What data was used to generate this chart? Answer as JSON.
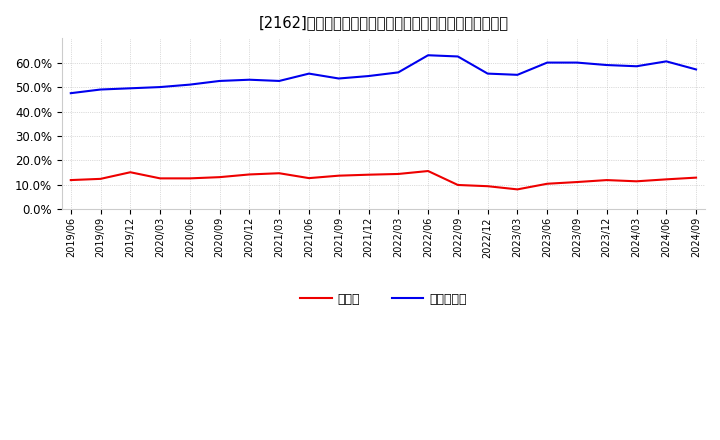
{
  "title": "[2162]　現預金、有利子負債の総資産に対する比率の推移",
  "x_labels": [
    "2019/06",
    "2019/09",
    "2019/12",
    "2020/03",
    "2020/06",
    "2020/09",
    "2020/12",
    "2021/03",
    "2021/06",
    "2021/09",
    "2021/12",
    "2022/03",
    "2022/06",
    "2022/09",
    "2022/12",
    "2023/03",
    "2023/06",
    "2023/09",
    "2023/12",
    "2024/03",
    "2024/06",
    "2024/09"
  ],
  "cash": [
    0.12,
    0.125,
    0.152,
    0.127,
    0.127,
    0.132,
    0.143,
    0.148,
    0.128,
    0.138,
    0.142,
    0.145,
    0.157,
    0.1,
    0.095,
    0.082,
    0.105,
    0.112,
    0.12,
    0.115,
    0.123,
    0.13
  ],
  "debt": [
    0.475,
    0.49,
    0.495,
    0.5,
    0.51,
    0.525,
    0.53,
    0.525,
    0.555,
    0.535,
    0.545,
    0.56,
    0.63,
    0.625,
    0.555,
    0.55,
    0.6,
    0.6,
    0.59,
    0.585,
    0.605,
    0.572
  ],
  "cash_color": "#ee0000",
  "debt_color": "#0000ee",
  "legend_cash": "現預金",
  "legend_debt": "有利子負債",
  "bg_color": "#ffffff",
  "plot_bg_color": "#ffffff",
  "grid_color": "#aaaaaa",
  "ylim": [
    0.0,
    0.7
  ],
  "yticks": [
    0.0,
    0.1,
    0.2,
    0.3,
    0.4,
    0.5,
    0.6
  ]
}
